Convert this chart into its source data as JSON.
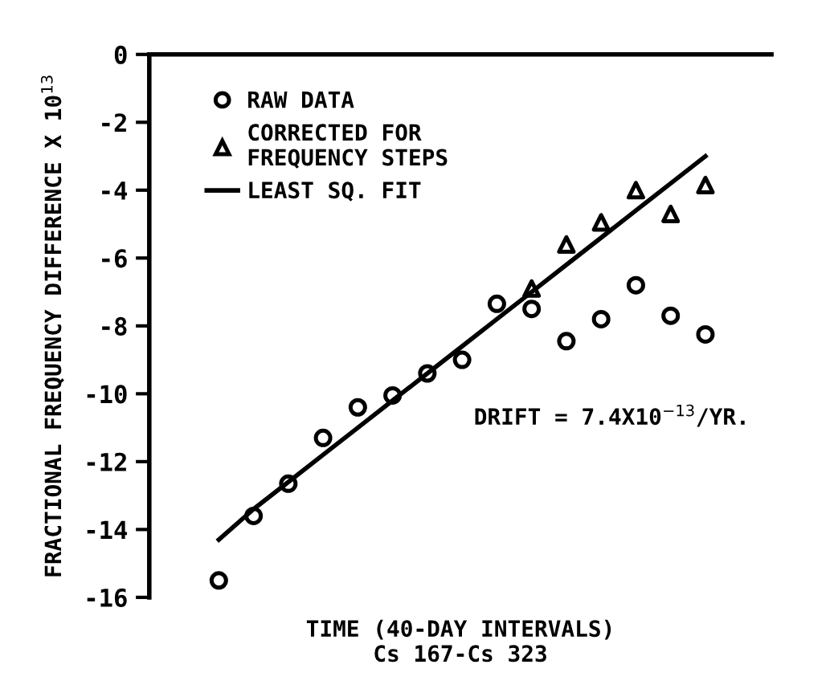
{
  "chart_data": {
    "type": "scatter",
    "xlabel": "TIME (40-DAY INTERVALS)\nCs 167-Cs 323",
    "ylabel": "FRACTIONAL FREQUENCY DIFFERENCE X 10$^{13}$",
    "annotations": [
      "DRIFT = 7.4X10$^{−13}$/YR."
    ],
    "categories": [
      null,
      null,
      null,
      null,
      null,
      null,
      null,
      null,
      null,
      null,
      null,
      null,
      null,
      null,
      null
    ],
    "series": [
      {
        "name": "RAW DATA",
        "marker": "circle",
        "color": "#000000",
        "values": [
          -15.5,
          -13.6,
          -12.65,
          -11.3,
          -10.4,
          -10.05,
          -9.4,
          -9.0,
          -7.35,
          -7.5,
          -8.45,
          -7.8,
          -6.8,
          -7.7,
          -8.25
        ]
      },
      {
        "name": "CORRECTED FOR\nFREQUENCY STEPS",
        "marker": "triangle",
        "color": "#000000",
        "values": [
          null,
          null,
          null,
          null,
          null,
          null,
          null,
          null,
          null,
          -6.9,
          -5.6,
          -4.95,
          -4.0,
          -4.7,
          -3.85
        ]
      },
      {
        "name": "LEAST SQ. FIT",
        "type": "line",
        "marker": "none",
        "line_style": "solid",
        "color": "#000000",
        "values": [
          -14.3,
          -13.4,
          -12.6,
          -11.8,
          -11.0,
          -10.2,
          -9.4,
          -8.6,
          -7.8,
          -7.0,
          -6.2,
          -5.4,
          -4.6,
          -3.8,
          -3.0
        ]
      }
    ],
    "ylim": [
      -16,
      0
    ],
    "yticks": [
      0,
      -2,
      -4,
      -6,
      -8,
      -10,
      -12,
      -14,
      -16
    ],
    "tick_labels": "y",
    "grid": false,
    "legend": "top left"
  }
}
